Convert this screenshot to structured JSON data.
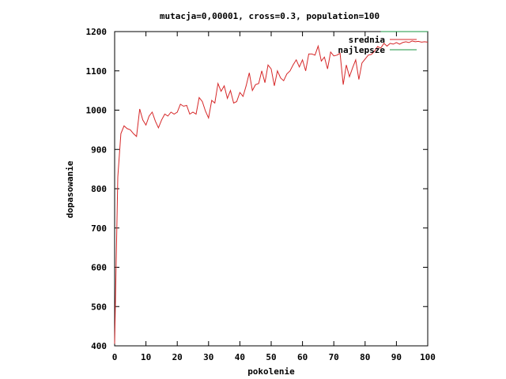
{
  "chart_data": {
    "type": "line",
    "title": "mutacja=0,00001, cross=0.3, population=100",
    "xlabel": "pokolenie",
    "ylabel": "dopasowanie",
    "xlim": [
      0,
      100
    ],
    "ylim": [
      400,
      1200
    ],
    "xticks": [
      0,
      10,
      20,
      30,
      40,
      50,
      60,
      70,
      80,
      90,
      100
    ],
    "yticks": [
      400,
      500,
      600,
      700,
      800,
      900,
      1000,
      1100,
      1200
    ],
    "grid": false,
    "legend_position": "top-right",
    "series": [
      {
        "name": "srednia",
        "color": "#d62728",
        "points": [
          [
            0,
            405
          ],
          [
            1,
            830
          ],
          [
            2,
            940
          ],
          [
            3,
            960
          ],
          [
            4,
            953
          ],
          [
            5,
            950
          ],
          [
            6,
            940
          ],
          [
            7,
            933
          ],
          [
            8,
            1003
          ],
          [
            9,
            975
          ],
          [
            10,
            962
          ],
          [
            11,
            985
          ],
          [
            12,
            995
          ],
          [
            13,
            972
          ],
          [
            14,
            955
          ],
          [
            15,
            975
          ],
          [
            16,
            990
          ],
          [
            17,
            985
          ],
          [
            18,
            995
          ],
          [
            19,
            990
          ],
          [
            20,
            995
          ],
          [
            21,
            1015
          ],
          [
            22,
            1010
          ],
          [
            23,
            1012
          ],
          [
            24,
            990
          ],
          [
            25,
            995
          ],
          [
            26,
            990
          ],
          [
            27,
            1032
          ],
          [
            28,
            1022
          ],
          [
            29,
            998
          ],
          [
            30,
            980
          ],
          [
            31,
            1025
          ],
          [
            32,
            1018
          ],
          [
            33,
            1068
          ],
          [
            34,
            1048
          ],
          [
            35,
            1062
          ],
          [
            36,
            1030
          ],
          [
            37,
            1050
          ],
          [
            38,
            1018
          ],
          [
            39,
            1022
          ],
          [
            40,
            1045
          ],
          [
            41,
            1035
          ],
          [
            42,
            1062
          ],
          [
            43,
            1095
          ],
          [
            44,
            1050
          ],
          [
            45,
            1065
          ],
          [
            46,
            1068
          ],
          [
            47,
            1100
          ],
          [
            48,
            1070
          ],
          [
            49,
            1115
          ],
          [
            50,
            1105
          ],
          [
            51,
            1062
          ],
          [
            52,
            1100
          ],
          [
            53,
            1082
          ],
          [
            54,
            1075
          ],
          [
            55,
            1092
          ],
          [
            56,
            1100
          ],
          [
            57,
            1115
          ],
          [
            58,
            1128
          ],
          [
            59,
            1110
          ],
          [
            60,
            1128
          ],
          [
            61,
            1100
          ],
          [
            62,
            1143
          ],
          [
            63,
            1143
          ],
          [
            64,
            1140
          ],
          [
            65,
            1163
          ],
          [
            66,
            1125
          ],
          [
            67,
            1135
          ],
          [
            68,
            1105
          ],
          [
            69,
            1148
          ],
          [
            70,
            1138
          ],
          [
            71,
            1140
          ],
          [
            72,
            1145
          ],
          [
            73,
            1065
          ],
          [
            74,
            1115
          ],
          [
            75,
            1085
          ],
          [
            76,
            1108
          ],
          [
            77,
            1128
          ],
          [
            78,
            1078
          ],
          [
            79,
            1120
          ],
          [
            80,
            1130
          ],
          [
            81,
            1140
          ],
          [
            82,
            1142
          ],
          [
            83,
            1150
          ],
          [
            84,
            1162
          ],
          [
            85,
            1158
          ],
          [
            86,
            1170
          ],
          [
            87,
            1163
          ],
          [
            88,
            1170
          ],
          [
            89,
            1168
          ],
          [
            90,
            1172
          ],
          [
            91,
            1168
          ],
          [
            92,
            1172
          ],
          [
            93,
            1174
          ],
          [
            94,
            1172
          ],
          [
            95,
            1176
          ],
          [
            96,
            1174
          ],
          [
            97,
            1175
          ],
          [
            98,
            1173
          ],
          [
            99,
            1174
          ],
          [
            100,
            1173
          ]
        ]
      },
      {
        "name": "najlepsze",
        "color": "#1a9641",
        "points": [
          [
            85,
            1200
          ],
          [
            86,
            1200
          ],
          [
            90,
            1200
          ],
          [
            95,
            1200
          ],
          [
            100,
            1200
          ]
        ]
      }
    ]
  }
}
